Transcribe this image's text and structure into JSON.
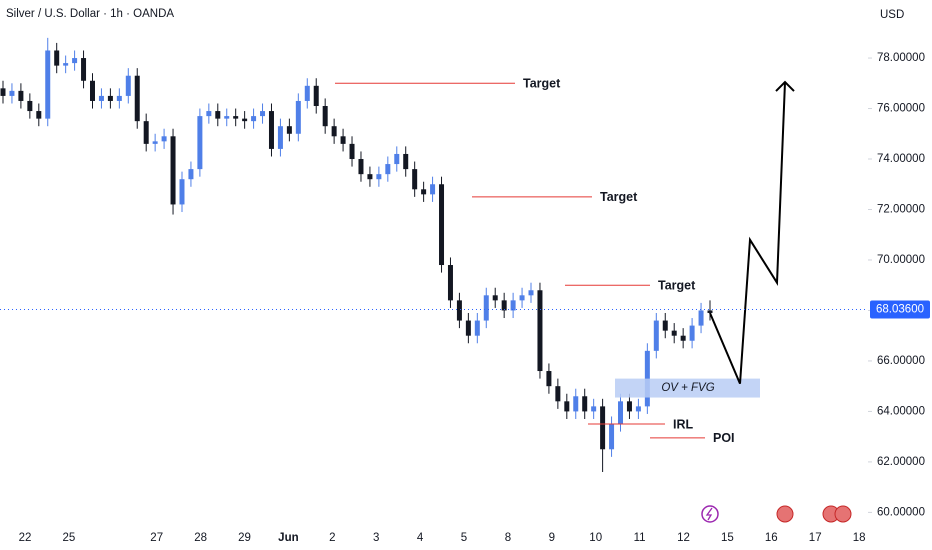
{
  "chart_data": {
    "type": "candlestick",
    "title": "Silver / U.S. Dollar · 1h · OANDA",
    "currency": "USD",
    "categories": [
      "22",
      "25",
      null,
      "27",
      "28",
      "29",
      "Jun",
      "2",
      "3",
      "4",
      "5",
      "8",
      "9",
      "10",
      "11",
      "12",
      "15",
      "16",
      "17",
      "18"
    ],
    "up_color": "#4f7fe8",
    "down_color": "#131722",
    "grid": false,
    "ylim": [
      59.5,
      80.3
    ],
    "yticks": [
      {
        "value": 60,
        "label": "60.00000"
      },
      {
        "value": 62,
        "label": "62.00000"
      },
      {
        "value": 64,
        "label": "64.00000"
      },
      {
        "value": 66,
        "label": "66.00000"
      },
      {
        "value": 68,
        "label": "68.00000"
      },
      {
        "value": 70,
        "label": "70.00000"
      },
      {
        "value": 72,
        "label": "72.00000"
      },
      {
        "value": 74,
        "label": "74.00000"
      },
      {
        "value": 76,
        "label": "76.00000"
      },
      {
        "value": 78,
        "label": "78.00000"
      }
    ],
    "last_price": {
      "value": 68.036,
      "label": "68.03600",
      "color": "#2962ff"
    },
    "open": [
      76.8,
      76.5,
      76.7,
      76.3,
      75.9,
      75.6,
      78.3,
      77.7,
      77.8,
      78.0,
      77.1,
      76.3,
      76.5,
      76.3,
      76.5,
      77.3,
      75.5,
      74.6,
      74.7,
      74.9,
      72.2,
      73.2,
      73.6,
      75.7,
      75.9,
      75.6,
      75.7,
      75.6,
      75.5,
      75.7,
      75.9,
      74.4,
      75.3,
      75.0,
      76.3,
      76.9,
      76.1,
      75.3,
      74.9,
      74.6,
      74.0,
      73.4,
      73.2,
      73.4,
      73.8,
      74.2,
      73.6,
      72.8,
      72.6,
      73.0,
      69.8,
      68.4,
      67.6,
      67.0,
      67.6,
      68.6,
      68.4,
      68.0,
      68.4,
      68.6,
      68.8,
      65.6,
      65.0,
      64.4,
      64.0,
      64.6,
      64.0,
      64.2,
      62.5,
      63.5,
      64.4,
      64.0,
      64.2,
      66.4,
      67.6,
      67.2,
      67.0,
      66.8,
      67.4,
      68.0
    ],
    "high": [
      77.1,
      77.0,
      77.0,
      76.6,
      76.2,
      78.8,
      78.6,
      78.1,
      78.3,
      78.3,
      77.4,
      76.8,
      76.8,
      76.8,
      77.6,
      77.6,
      75.8,
      75.0,
      75.2,
      75.2,
      73.5,
      73.9,
      76.0,
      76.2,
      76.2,
      76.0,
      76.0,
      75.9,
      76.0,
      76.2,
      76.2,
      75.6,
      75.6,
      76.6,
      77.2,
      77.2,
      76.4,
      75.6,
      75.2,
      74.9,
      74.3,
      73.7,
      73.7,
      74.1,
      74.5,
      74.5,
      73.9,
      73.1,
      73.3,
      73.3,
      70.1,
      68.7,
      67.9,
      67.9,
      68.9,
      68.9,
      68.7,
      68.7,
      68.9,
      69.1,
      69.1,
      65.9,
      65.3,
      64.7,
      64.9,
      64.9,
      64.5,
      64.5,
      63.8,
      64.7,
      64.7,
      64.5,
      66.7,
      67.9,
      67.9,
      67.5,
      67.3,
      67.7,
      68.3,
      68.4
    ],
    "low": [
      76.2,
      76.2,
      76.0,
      75.6,
      75.3,
      75.3,
      77.4,
      77.4,
      77.5,
      76.8,
      76.0,
      76.0,
      76.0,
      76.0,
      76.2,
      75.2,
      74.3,
      74.3,
      74.4,
      71.8,
      71.9,
      72.9,
      73.3,
      75.4,
      75.3,
      75.3,
      75.3,
      75.2,
      75.2,
      75.4,
      74.1,
      74.1,
      74.7,
      74.7,
      76.0,
      75.8,
      75.0,
      74.6,
      74.3,
      73.7,
      73.1,
      72.9,
      72.9,
      73.1,
      73.5,
      73.3,
      72.5,
      72.3,
      72.3,
      69.5,
      68.1,
      67.3,
      66.7,
      66.7,
      67.3,
      68.1,
      67.7,
      67.7,
      68.1,
      68.3,
      65.3,
      64.7,
      64.1,
      63.7,
      63.7,
      63.7,
      63.7,
      61.6,
      62.2,
      63.2,
      63.7,
      63.7,
      63.9,
      66.1,
      66.9,
      66.7,
      66.5,
      66.5,
      67.1,
      67.6
    ],
    "close": [
      76.5,
      76.7,
      76.3,
      75.9,
      75.6,
      78.3,
      77.7,
      77.8,
      78.0,
      77.1,
      76.3,
      76.5,
      76.3,
      76.5,
      77.3,
      75.5,
      74.6,
      74.7,
      74.9,
      72.2,
      73.2,
      73.6,
      75.7,
      75.9,
      75.6,
      75.7,
      75.6,
      75.5,
      75.7,
      75.9,
      74.4,
      75.3,
      75.0,
      76.3,
      76.9,
      76.1,
      75.3,
      74.9,
      74.6,
      74.0,
      73.4,
      73.2,
      73.4,
      73.8,
      74.2,
      73.6,
      72.8,
      72.6,
      73.0,
      69.8,
      68.4,
      67.6,
      67.0,
      67.6,
      68.6,
      68.4,
      68.0,
      68.4,
      68.6,
      68.8,
      65.6,
      65.0,
      64.4,
      64.0,
      64.6,
      64.0,
      64.2,
      62.5,
      63.5,
      64.4,
      64.0,
      64.2,
      66.4,
      67.6,
      67.2,
      67.0,
      66.8,
      67.4,
      68.0,
      67.9
    ],
    "levels": [
      {
        "label": "Target",
        "value": 77.0,
        "color": "#e53935"
      },
      {
        "label": "Target",
        "value": 72.5,
        "color": "#e53935"
      },
      {
        "label": "Target",
        "value": 69.0,
        "color": "#e53935"
      },
      {
        "label": "IRL",
        "value": 63.5,
        "color": "#e53935"
      },
      {
        "label": "POI",
        "value": 62.95,
        "color": "#e53935"
      }
    ],
    "zone": {
      "label": "OV + FVG",
      "values": [
        65.3,
        64.55
      ],
      "color": "#b8cdf5"
    },
    "projection": {
      "values": [
        67.9,
        65.1,
        70.8,
        69.1,
        77.05
      ],
      "color": "#000000"
    }
  }
}
